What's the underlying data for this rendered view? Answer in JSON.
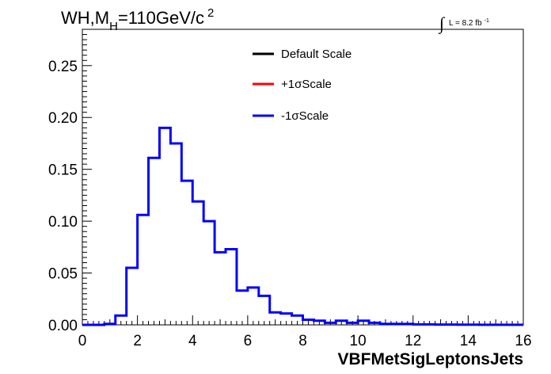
{
  "chart_data": {
    "type": "step-histogram",
    "title_parts": {
      "main": "WH,M",
      "sub": "H",
      "rest": "=110GeV/c",
      "sup": "2"
    },
    "lumi": {
      "integral": "∫",
      "text": "L = 8.2 fb",
      "sup": "-1"
    },
    "xlabel": "VBFMetSigLeptonsJets",
    "ylabel": "",
    "xlim": [
      0,
      16
    ],
    "ylim": [
      0,
      0.285
    ],
    "x_ticks": [
      "0",
      "2",
      "4",
      "6",
      "8",
      "10",
      "12",
      "14",
      "16"
    ],
    "y_ticks": [
      "0.00",
      "0.05",
      "0.10",
      "0.15",
      "0.20",
      "0.25"
    ],
    "bin_width": 0.4,
    "bin_start": 0,
    "legend": [
      {
        "name": "Default Scale",
        "color": "#000000"
      },
      {
        "name": "+1σScale",
        "color": "#ff0000"
      },
      {
        "name": "-1σScale",
        "color": "#0000ff"
      }
    ],
    "series": [
      {
        "name": "-1σScale",
        "color": "#0000ff",
        "values": [
          0,
          0,
          0.001,
          0.009,
          0.055,
          0.106,
          0.161,
          0.19,
          0.175,
          0.139,
          0.119,
          0.1,
          0.07,
          0.073,
          0.033,
          0.036,
          0.028,
          0.012,
          0.011,
          0.009,
          0.005,
          0.004,
          0.002,
          0.004,
          0.002,
          0.004,
          0.002,
          0.001,
          0.001,
          0.001,
          0.0005,
          0.0005,
          0.0003,
          0.0003,
          0.0002,
          0.0002,
          0.0001,
          0.0001,
          0.0001,
          0.0001
        ]
      }
    ]
  }
}
